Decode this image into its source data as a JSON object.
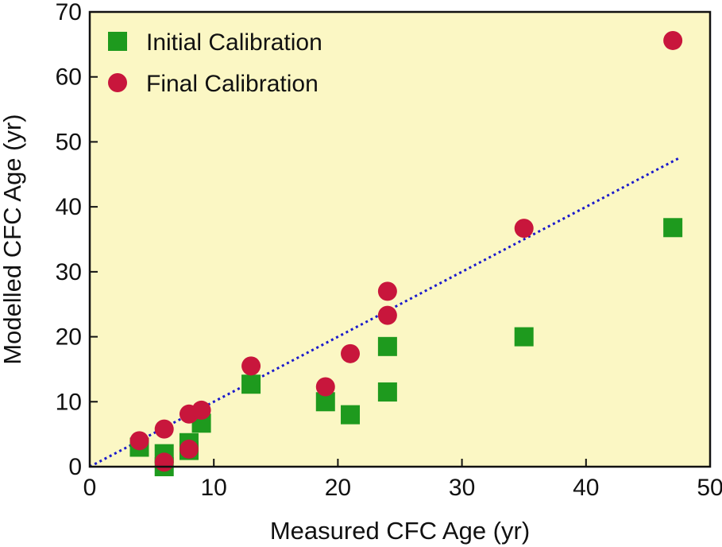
{
  "chart_data": {
    "type": "scatter",
    "title": "",
    "xlabel": "Measured CFC Age (yr)",
    "ylabel": "Modelled CFC Age (yr)",
    "xlim": [
      0,
      50
    ],
    "ylim": [
      0,
      70
    ],
    "xticks": [
      0,
      10,
      20,
      30,
      40,
      50
    ],
    "yticks": [
      0,
      10,
      20,
      30,
      40,
      50,
      60,
      70
    ],
    "grid": false,
    "legend_position": "top-left",
    "background_color": "#fbf7c4",
    "series": [
      {
        "name": "Initial Calibration",
        "marker": "square",
        "color": "#1e9a1e",
        "points": [
          {
            "x": 4,
            "y": 3
          },
          {
            "x": 6,
            "y": 2
          },
          {
            "x": 6,
            "y": 0
          },
          {
            "x": 8,
            "y": 2.5
          },
          {
            "x": 8,
            "y": 3.7
          },
          {
            "x": 9,
            "y": 6.7
          },
          {
            "x": 13,
            "y": 12.7
          },
          {
            "x": 19,
            "y": 10
          },
          {
            "x": 21,
            "y": 8
          },
          {
            "x": 24,
            "y": 18.5
          },
          {
            "x": 24,
            "y": 11.5
          },
          {
            "x": 35,
            "y": 20
          },
          {
            "x": 47,
            "y": 36.8
          }
        ]
      },
      {
        "name": "Final Calibration",
        "marker": "circle",
        "color": "#c8163c",
        "points": [
          {
            "x": 4,
            "y": 4
          },
          {
            "x": 6,
            "y": 5.8
          },
          {
            "x": 6,
            "y": 0.7
          },
          {
            "x": 8,
            "y": 8.1
          },
          {
            "x": 8,
            "y": 2.7
          },
          {
            "x": 9,
            "y": 8.7
          },
          {
            "x": 13,
            "y": 15.5
          },
          {
            "x": 19,
            "y": 12.3
          },
          {
            "x": 21,
            "y": 17.4
          },
          {
            "x": 24,
            "y": 27
          },
          {
            "x": 24,
            "y": 23.3
          },
          {
            "x": 35,
            "y": 36.7
          },
          {
            "x": 47,
            "y": 65.6
          }
        ]
      }
    ],
    "reference_line": {
      "name": "1:1 line",
      "style": "dotted",
      "color": "#1a1acc",
      "x": [
        0,
        47.5
      ],
      "y": [
        0,
        47.5
      ]
    }
  }
}
